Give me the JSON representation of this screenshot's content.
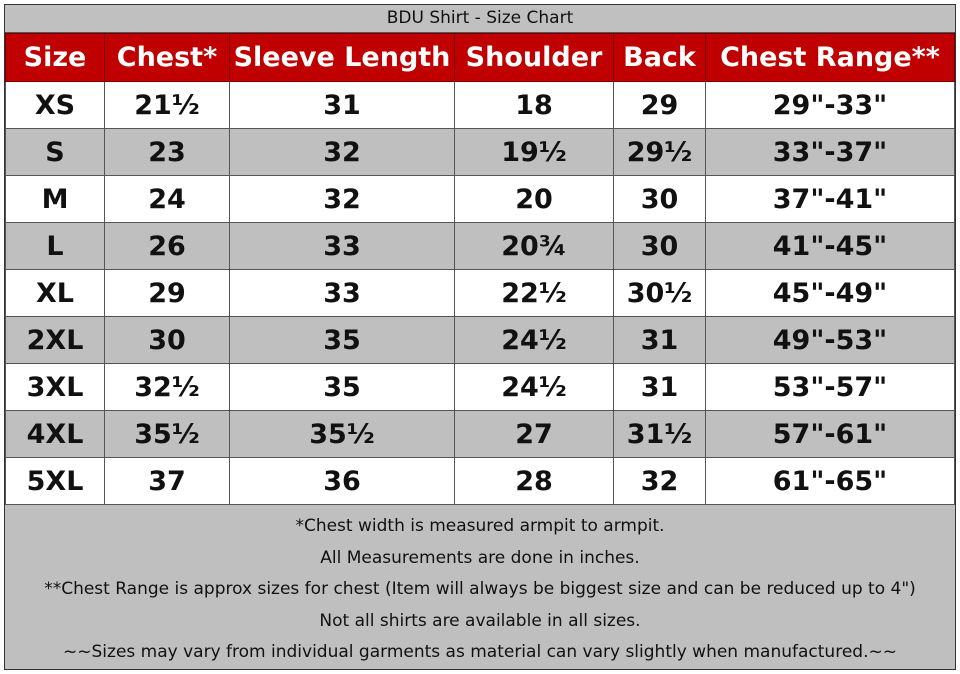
{
  "title": "BDU Shirt - Size Chart",
  "colors": {
    "header_bg": "#c00000",
    "header_text": "#ffffff",
    "alt_row_bg": "#bfbfbf",
    "row_bg": "#ffffff"
  },
  "columns": [
    "Size",
    "Chest*",
    "Sleeve Length",
    "Shoulder",
    "Back",
    "Chest Range**"
  ],
  "rows": [
    [
      "XS",
      "21½",
      "31",
      "18",
      "29",
      "29\"-33\""
    ],
    [
      "S",
      "23",
      "32",
      "19½",
      "29½",
      "33\"-37\""
    ],
    [
      "M",
      "24",
      "32",
      "20",
      "30",
      "37\"-41\""
    ],
    [
      "L",
      "26",
      "33",
      "20¾",
      "30",
      "41\"-45\""
    ],
    [
      "XL",
      "29",
      "33",
      "22½",
      "30½",
      "45\"-49\""
    ],
    [
      "2XL",
      "30",
      "35",
      "24½",
      "31",
      "49\"-53\""
    ],
    [
      "3XL",
      "32½",
      "35",
      "24½",
      "31",
      "53\"-57\""
    ],
    [
      "4XL",
      "35½",
      "35½",
      "27",
      "31½",
      "57\"-61\""
    ],
    [
      "5XL",
      "37",
      "36",
      "28",
      "32",
      "61\"-65\""
    ]
  ],
  "notes": [
    "*Chest width is measured armpit to armpit.",
    "All Measurements are done in inches.",
    "**Chest Range is approx sizes for chest (Item will always be biggest size and can be reduced up to 4\")",
    "Not all shirts are available in all sizes.",
    "~~Sizes may vary from individual garments as material can vary slightly when manufactured.~~"
  ]
}
